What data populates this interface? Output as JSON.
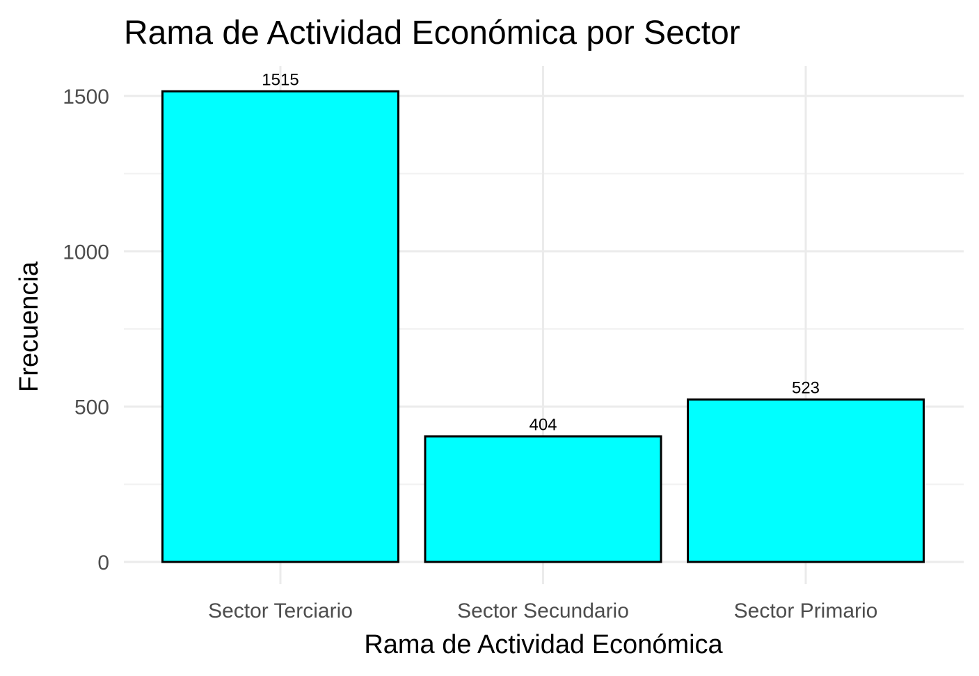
{
  "chart_data": {
    "type": "bar",
    "title": "Rama de Actividad Económica por Sector",
    "xlabel": "Rama de Actividad Económica",
    "ylabel": "Frecuencia",
    "categories": [
      "Sector Terciario",
      "Sector Secundario",
      "Sector Primario"
    ],
    "values": [
      1515,
      404,
      523
    ],
    "data_labels": [
      "1515",
      "404",
      "523"
    ],
    "ylim": [
      0,
      1600
    ],
    "yticks": [
      0,
      500,
      1000,
      1500
    ],
    "ytick_labels": [
      "0",
      "500",
      "1000",
      "1500"
    ],
    "grid": true,
    "legend": "none",
    "bar_fill": "#00ffff",
    "bar_outline": "#000000"
  }
}
